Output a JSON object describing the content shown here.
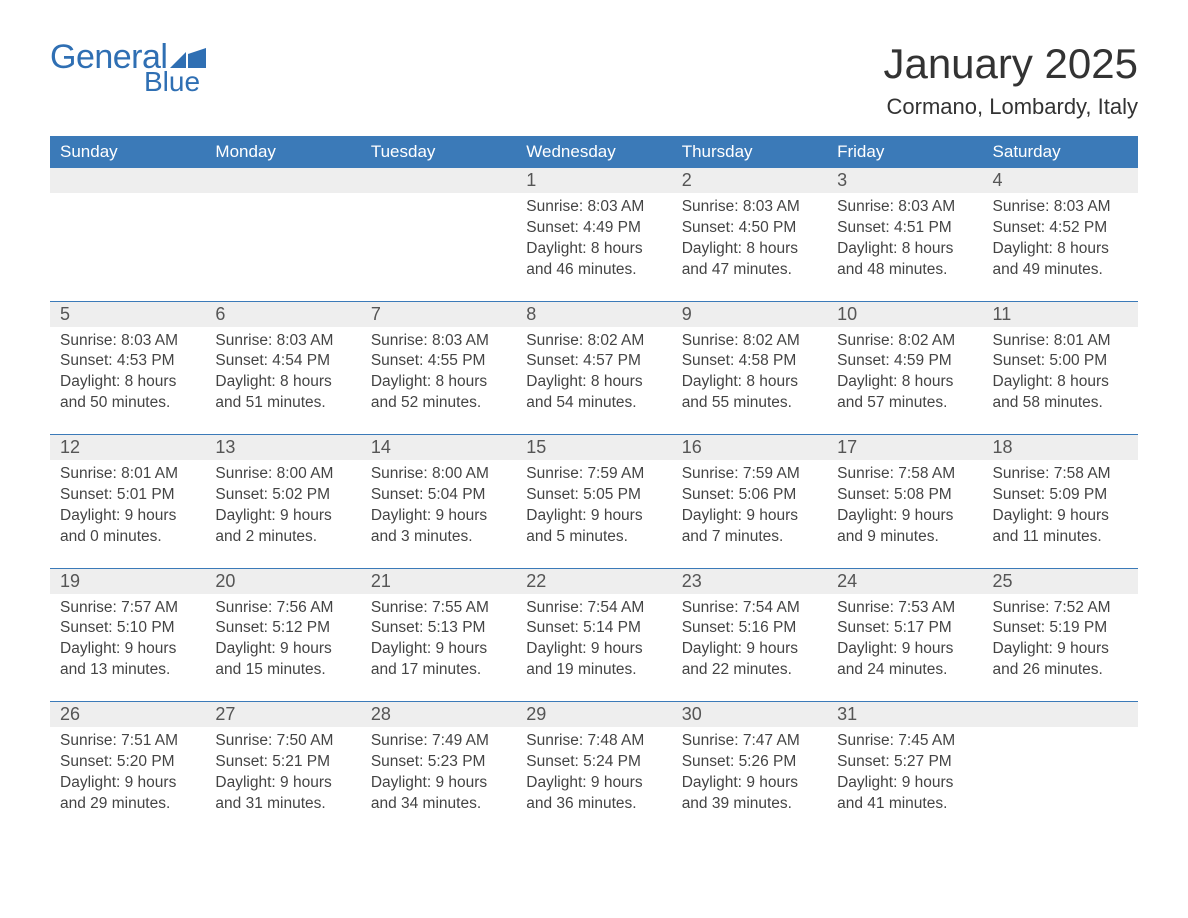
{
  "logo": {
    "text_general": "General",
    "text_blue": "Blue",
    "flag_color": "#2f6fb3"
  },
  "header": {
    "month_title": "January 2025",
    "location": "Cormano, Lombardy, Italy"
  },
  "colors": {
    "header_bg": "#3b7ab8",
    "header_text": "#ffffff",
    "daynum_bg": "#eeeeee",
    "rule": "#3b7ab8",
    "body_text": "#444444",
    "title_text": "#333333",
    "logo_text": "#2f6fb3"
  },
  "typography": {
    "title_fontsize": 42,
    "location_fontsize": 22,
    "weekday_fontsize": 17,
    "daynum_fontsize": 18,
    "cell_fontsize": 15.5
  },
  "calendar": {
    "weekdays": [
      "Sunday",
      "Monday",
      "Tuesday",
      "Wednesday",
      "Thursday",
      "Friday",
      "Saturday"
    ],
    "weeks": [
      [
        null,
        null,
        null,
        {
          "day": "1",
          "sunrise": "8:03 AM",
          "sunset": "4:49 PM",
          "daylight": "8 hours and 46 minutes."
        },
        {
          "day": "2",
          "sunrise": "8:03 AM",
          "sunset": "4:50 PM",
          "daylight": "8 hours and 47 minutes."
        },
        {
          "day": "3",
          "sunrise": "8:03 AM",
          "sunset": "4:51 PM",
          "daylight": "8 hours and 48 minutes."
        },
        {
          "day": "4",
          "sunrise": "8:03 AM",
          "sunset": "4:52 PM",
          "daylight": "8 hours and 49 minutes."
        }
      ],
      [
        {
          "day": "5",
          "sunrise": "8:03 AM",
          "sunset": "4:53 PM",
          "daylight": "8 hours and 50 minutes."
        },
        {
          "day": "6",
          "sunrise": "8:03 AM",
          "sunset": "4:54 PM",
          "daylight": "8 hours and 51 minutes."
        },
        {
          "day": "7",
          "sunrise": "8:03 AM",
          "sunset": "4:55 PM",
          "daylight": "8 hours and 52 minutes."
        },
        {
          "day": "8",
          "sunrise": "8:02 AM",
          "sunset": "4:57 PM",
          "daylight": "8 hours and 54 minutes."
        },
        {
          "day": "9",
          "sunrise": "8:02 AM",
          "sunset": "4:58 PM",
          "daylight": "8 hours and 55 minutes."
        },
        {
          "day": "10",
          "sunrise": "8:02 AM",
          "sunset": "4:59 PM",
          "daylight": "8 hours and 57 minutes."
        },
        {
          "day": "11",
          "sunrise": "8:01 AM",
          "sunset": "5:00 PM",
          "daylight": "8 hours and 58 minutes."
        }
      ],
      [
        {
          "day": "12",
          "sunrise": "8:01 AM",
          "sunset": "5:01 PM",
          "daylight": "9 hours and 0 minutes."
        },
        {
          "day": "13",
          "sunrise": "8:00 AM",
          "sunset": "5:02 PM",
          "daylight": "9 hours and 2 minutes."
        },
        {
          "day": "14",
          "sunrise": "8:00 AM",
          "sunset": "5:04 PM",
          "daylight": "9 hours and 3 minutes."
        },
        {
          "day": "15",
          "sunrise": "7:59 AM",
          "sunset": "5:05 PM",
          "daylight": "9 hours and 5 minutes."
        },
        {
          "day": "16",
          "sunrise": "7:59 AM",
          "sunset": "5:06 PM",
          "daylight": "9 hours and 7 minutes."
        },
        {
          "day": "17",
          "sunrise": "7:58 AM",
          "sunset": "5:08 PM",
          "daylight": "9 hours and 9 minutes."
        },
        {
          "day": "18",
          "sunrise": "7:58 AM",
          "sunset": "5:09 PM",
          "daylight": "9 hours and 11 minutes."
        }
      ],
      [
        {
          "day": "19",
          "sunrise": "7:57 AM",
          "sunset": "5:10 PM",
          "daylight": "9 hours and 13 minutes."
        },
        {
          "day": "20",
          "sunrise": "7:56 AM",
          "sunset": "5:12 PM",
          "daylight": "9 hours and 15 minutes."
        },
        {
          "day": "21",
          "sunrise": "7:55 AM",
          "sunset": "5:13 PM",
          "daylight": "9 hours and 17 minutes."
        },
        {
          "day": "22",
          "sunrise": "7:54 AM",
          "sunset": "5:14 PM",
          "daylight": "9 hours and 19 minutes."
        },
        {
          "day": "23",
          "sunrise": "7:54 AM",
          "sunset": "5:16 PM",
          "daylight": "9 hours and 22 minutes."
        },
        {
          "day": "24",
          "sunrise": "7:53 AM",
          "sunset": "5:17 PM",
          "daylight": "9 hours and 24 minutes."
        },
        {
          "day": "25",
          "sunrise": "7:52 AM",
          "sunset": "5:19 PM",
          "daylight": "9 hours and 26 minutes."
        }
      ],
      [
        {
          "day": "26",
          "sunrise": "7:51 AM",
          "sunset": "5:20 PM",
          "daylight": "9 hours and 29 minutes."
        },
        {
          "day": "27",
          "sunrise": "7:50 AM",
          "sunset": "5:21 PM",
          "daylight": "9 hours and 31 minutes."
        },
        {
          "day": "28",
          "sunrise": "7:49 AM",
          "sunset": "5:23 PM",
          "daylight": "9 hours and 34 minutes."
        },
        {
          "day": "29",
          "sunrise": "7:48 AM",
          "sunset": "5:24 PM",
          "daylight": "9 hours and 36 minutes."
        },
        {
          "day": "30",
          "sunrise": "7:47 AM",
          "sunset": "5:26 PM",
          "daylight": "9 hours and 39 minutes."
        },
        {
          "day": "31",
          "sunrise": "7:45 AM",
          "sunset": "5:27 PM",
          "daylight": "9 hours and 41 minutes."
        },
        null
      ]
    ],
    "labels": {
      "sunrise": "Sunrise: ",
      "sunset": "Sunset: ",
      "daylight": "Daylight: "
    }
  }
}
